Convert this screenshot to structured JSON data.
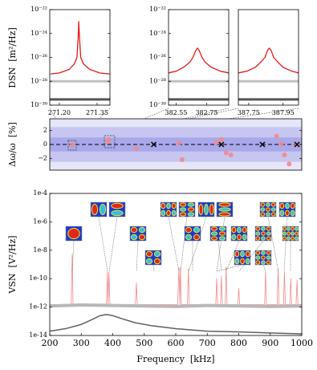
{
  "chart_data": [
    {
      "type": "line",
      "log_y": true,
      "ylabel": "DSN  [m²/Hz]",
      "xlim": [
        271.162,
        271.401
      ],
      "ylim": [
        1e-30,
        1e-22
      ],
      "xticks": [
        {
          "value": 271.2,
          "label": "271.20"
        },
        271.35
      ],
      "yticks": [
        {
          "value": 1e-22,
          "label": "10⁻²²"
        },
        {
          "value": 1e-24,
          "label": "10⁻²⁴"
        },
        {
          "value": 1e-26,
          "label": "10⁻²⁶"
        },
        {
          "value": 1e-28,
          "label": "10⁻²⁸"
        },
        {
          "value": 1e-30,
          "label": "10⁻³⁰"
        }
      ],
      "series": [
        {
          "color": "#c0c0c0",
          "line_width": 3,
          "x": [
            271.162,
            271.401
          ],
          "values": [
            1e-28,
            1e-28
          ]
        },
        {
          "color": "#555555",
          "line_width": 3,
          "x": [
            271.162,
            271.401
          ],
          "values": [
            3e-30,
            3e-30
          ]
        },
        {
          "color": "#e8191a",
          "line_width": 1.3,
          "x": [
            271.165,
            271.2,
            271.24,
            271.26,
            271.27,
            271.275,
            271.277,
            271.28,
            271.285,
            271.295,
            271.32,
            271.36,
            271.4
          ],
          "values": [
            4e-28,
            5e-28,
            1e-27,
            3e-27,
            1e-26,
            5e-25,
            1e-23,
            5e-25,
            1e-26,
            3e-27,
            1e-27,
            5e-28,
            4e-28
          ]
        }
      ]
    },
    {
      "type": "line",
      "log_y": true,
      "xlim": [
        382.5,
        382.895
      ],
      "ylim": [
        1e-30,
        1e-22
      ],
      "xticks": [
        382.55,
        382.75
      ],
      "yticks": [
        {
          "value": 1e-22,
          "label": "10⁻²²"
        },
        {
          "value": 1e-24,
          "label": "10⁻²⁴"
        },
        {
          "value": 1e-26,
          "label": "10⁻²⁶"
        },
        {
          "value": 1e-28,
          "label": "10⁻²⁸"
        },
        {
          "value": 1e-30,
          "label": "10⁻³⁰"
        }
      ],
      "series": [
        {
          "color": "#c0c0c0",
          "line_width": 3,
          "x": [
            382.5,
            382.895
          ],
          "values": [
            1e-28,
            1e-28
          ]
        },
        {
          "color": "#555555",
          "line_width": 3,
          "x": [
            382.5,
            382.895
          ],
          "values": [
            3e-30,
            3e-30
          ]
        },
        {
          "color": "#e8191a",
          "line_width": 1.3,
          "x": [
            382.5,
            382.55,
            382.6,
            382.64,
            382.66,
            382.68,
            382.69,
            382.7,
            382.72,
            382.74,
            382.78,
            382.84,
            382.895
          ],
          "values": [
            5e-28,
            7e-28,
            1.5e-27,
            4e-27,
            1e-26,
            4e-26,
            6e-26,
            4e-26,
            1e-26,
            4e-27,
            1.5e-27,
            7e-28,
            5e-28
          ]
        }
      ]
    },
    {
      "type": "line",
      "log_y": true,
      "xlim": [
        387.69,
        388.04
      ],
      "ylim": [
        1e-30,
        1e-22
      ],
      "xticks": [
        387.75,
        387.95
      ],
      "series": [
        {
          "color": "#c0c0c0",
          "line_width": 3,
          "x": [
            387.69,
            388.04
          ],
          "values": [
            1e-28,
            1e-28
          ]
        },
        {
          "color": "#555555",
          "line_width": 3,
          "x": [
            387.69,
            388.04
          ],
          "values": [
            3e-30,
            3e-30
          ]
        },
        {
          "color": "#e8191a",
          "line_width": 1.3,
          "x": [
            387.69,
            387.74,
            387.79,
            387.82,
            387.845,
            387.86,
            387.87,
            387.88,
            387.895,
            387.92,
            387.95,
            388.0,
            388.04
          ],
          "values": [
            5e-28,
            7e-28,
            1.5e-27,
            4e-27,
            1e-26,
            4e-26,
            6e-26,
            4e-26,
            1e-26,
            4e-27,
            1.5e-27,
            7e-28,
            5e-28
          ]
        }
      ]
    },
    {
      "type": "scatter",
      "ylabel": "Δω/ω  [%]",
      "xlim": [
        200,
        1000
      ],
      "ylim": [
        -3.7,
        3.7
      ],
      "yticks": [
        2,
        0,
        {
          "value": -2,
          "label": "−2"
        }
      ],
      "background": "#e6e6f8",
      "bands": [
        2.5,
        1
      ],
      "band_colors": [
        "#c6c6f0",
        "#a8a8ea"
      ],
      "reference": 0,
      "series": [
        {
          "color": "#f08a8a",
          "marker": "circle",
          "x": [
            271.3,
            383,
            388,
            475,
            610,
            620,
            730,
            745,
            760,
            775,
            920,
            935,
            945,
            960,
            985
          ],
          "values": [
            0,
            0.4,
            0.7,
            -0.6,
            0.2,
            -2.2,
            0.3,
            0.7,
            -1.2,
            -1.5,
            1.2,
            0.1,
            -1.5,
            -2.8,
            0
          ]
        },
        {
          "color": "#000000",
          "marker": "x",
          "x": [
            530,
            745,
            875,
            985
          ],
          "values": [
            0,
            0,
            0,
            0
          ]
        }
      ]
    },
    {
      "type": "line",
      "log_y": true,
      "ylabel": "VSN  [V²/Hz]",
      "xlabel": "Frequency  [kHz]",
      "xlim": [
        200,
        1000
      ],
      "ylim": [
        1e-14,
        0.0001
      ],
      "xticks": [
        200,
        300,
        400,
        500,
        600,
        700,
        800,
        900,
        1000
      ],
      "yticks": [
        {
          "value": 0.0001,
          "label": "1e-4"
        },
        {
          "value": 1e-06,
          "label": "1e-6"
        },
        {
          "value": 1e-08,
          "label": "1e-8"
        },
        {
          "value": 1e-10,
          "label": "1e-10"
        },
        {
          "value": 1e-12,
          "label": "1e-12"
        },
        {
          "value": 1e-14,
          "label": "1e-14"
        }
      ],
      "series": [
        {
          "color": "#606060",
          "line_width": 1.5,
          "x": [
            200,
            250,
            300,
            330,
            360,
            380,
            400,
            430,
            470,
            520,
            600,
            700,
            800,
            900,
            1000
          ],
          "values": [
            2e-14,
            3e-14,
            6e-14,
            1.2e-13,
            2.5e-13,
            3e-13,
            2.5e-13,
            1.5e-13,
            8e-14,
            5e-14,
            3e-14,
            2e-14,
            1.8e-14,
            1.5e-14,
            1.3e-14
          ]
        },
        {
          "color": "#f08a8a",
          "line_width": 0.8,
          "x": [
            200,
            268,
            271.3,
            274,
            380,
            383,
            385,
            388,
            391,
            472,
            475,
            478,
            606,
            610,
            613,
            615,
            618,
            637,
            640,
            643,
            727,
            730,
            733,
            742,
            745,
            748,
            757,
            760,
            763,
            797,
            800,
            803,
            882,
            885,
            888,
            922,
            925,
            928,
            942,
            945,
            948,
            962,
            965,
            968,
            982,
            985,
            988,
            1000
          ],
          "values": [
            1.5e-12,
            1.5e-12,
            5e-09,
            1.5e-12,
            1.5e-12,
            3e-10,
            1.5e-12,
            3e-10,
            1.5e-12,
            1.5e-12,
            5e-11,
            1.5e-12,
            1.5e-12,
            6e-10,
            1.5e-12,
            6e-10,
            1.5e-12,
            1.5e-12,
            5e-10,
            1.5e-12,
            1.5e-12,
            1e-10,
            1.5e-12,
            1.5e-12,
            1.5e-10,
            1.5e-12,
            1.5e-12,
            7e-10,
            1.5e-12,
            1.5e-12,
            2e-11,
            1.5e-12,
            1.5e-12,
            3e-10,
            1.5e-12,
            1.5e-12,
            5e-10,
            1.5e-12,
            1.5e-12,
            3e-10,
            1.5e-12,
            1.5e-12,
            1e-10,
            1.5e-12,
            1.5e-12,
            8e-11,
            1.5e-12,
            1.5e-12
          ]
        },
        {
          "color": "#b8b8b8",
          "line_width": 4,
          "x": [
            200,
            300,
            400,
            500,
            600,
            700,
            800,
            900,
            1000
          ],
          "values": [
            1.2e-12,
            1.4e-12,
            1.3e-12,
            1.2e-12,
            1.1e-12,
            1.3e-12,
            1.2e-12,
            1.1e-12,
            1.2e-12
          ]
        }
      ]
    }
  ]
}
